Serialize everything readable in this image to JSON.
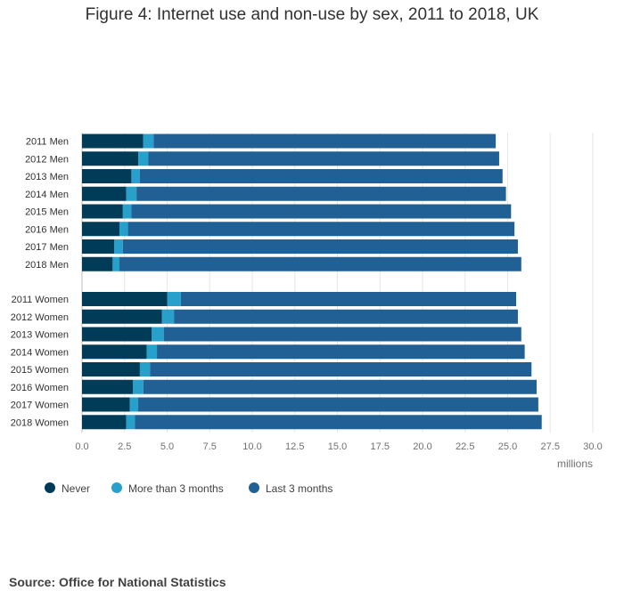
{
  "chart_data": {
    "type": "bar",
    "orientation": "horizontal",
    "stacked": true,
    "title": "Figure 4: Internet use and non-use by sex, 2011 to 2018, UK",
    "xlabel": "millions",
    "ylabel": "",
    "xlim": [
      0,
      30
    ],
    "xticks": [
      "0.0",
      "2.5",
      "5.0",
      "7.5",
      "10.0",
      "12.5",
      "15.0",
      "17.5",
      "20.0",
      "22.5",
      "25.0",
      "27.5",
      "30.0"
    ],
    "grid": true,
    "legend_position": "bottom-left",
    "categories": [
      "2011 Men",
      "2012 Men",
      "2013 Men",
      "2014 Men",
      "2015 Men",
      "2016 Men",
      "2017 Men",
      "2018 Men",
      "2011 Women",
      "2012 Women",
      "2013 Women",
      "2014 Women",
      "2015 Women",
      "2016 Women",
      "2017 Women",
      "2018 Women"
    ],
    "series": [
      {
        "name": "Never",
        "color": "#003c57",
        "values": [
          3.6,
          3.3,
          2.9,
          2.6,
          2.4,
          2.2,
          1.9,
          1.8,
          5.0,
          4.7,
          4.1,
          3.8,
          3.4,
          3.0,
          2.8,
          2.6
        ]
      },
      {
        "name": "More than 3 months",
        "color": "#27a0cc",
        "values": [
          0.6,
          0.6,
          0.5,
          0.6,
          0.5,
          0.5,
          0.5,
          0.4,
          0.8,
          0.7,
          0.7,
          0.6,
          0.6,
          0.6,
          0.5,
          0.5
        ]
      },
      {
        "name": "Last 3 months",
        "color": "#206095",
        "values": [
          20.1,
          20.6,
          21.3,
          21.7,
          22.3,
          22.7,
          23.2,
          23.6,
          19.7,
          20.2,
          21.0,
          21.6,
          22.4,
          23.1,
          23.5,
          23.9
        ]
      }
    ]
  },
  "source": "Source: Office for National Statistics"
}
